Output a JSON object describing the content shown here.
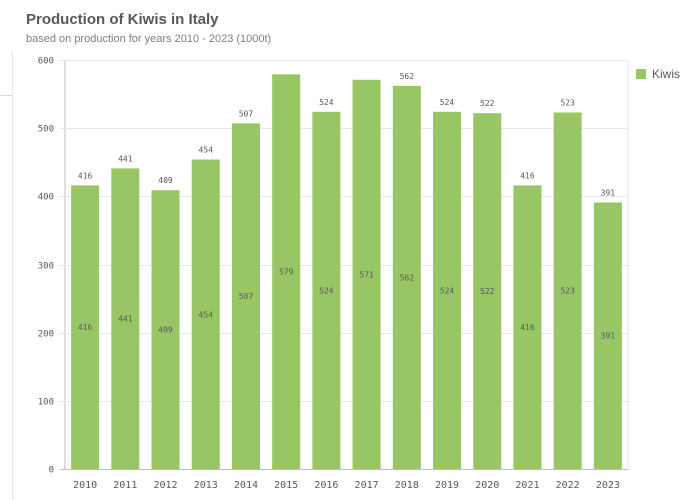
{
  "chart_data": {
    "type": "bar",
    "title": "Production of Kiwis in Italy",
    "subtitle": "based on production for years 2010 - 2023 (1000t)",
    "categories": [
      "2010",
      "2011",
      "2012",
      "2013",
      "2014",
      "2015",
      "2016",
      "2017",
      "2018",
      "2019",
      "2020",
      "2021",
      "2022",
      "2023"
    ],
    "series": [
      {
        "name": "Kiwis",
        "values": [
          416,
          441,
          409,
          454,
          507,
          579,
          524,
          571,
          562,
          524,
          522,
          416,
          523,
          391
        ]
      }
    ],
    "top_labels": [
      "416",
      "441",
      "409",
      "454",
      "507",
      "",
      "524",
      "",
      "562",
      "524",
      "522",
      "416",
      "523",
      "391"
    ],
    "ylim": [
      0,
      600
    ],
    "yticks": [
      0,
      100,
      200,
      300,
      400,
      500,
      600
    ],
    "color": "#98c665",
    "legend_position": "top-right"
  }
}
